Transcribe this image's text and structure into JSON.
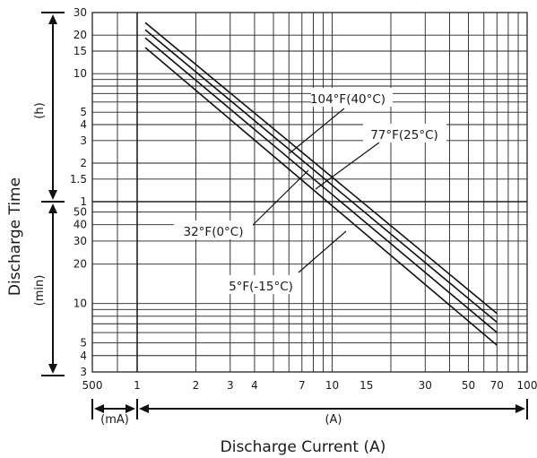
{
  "chart_data": {
    "type": "line",
    "title": "",
    "xlabel": "Discharge Current (A)",
    "ylabel": "Discharge Time",
    "x_scale": "log",
    "y_scale": "log",
    "grid": true,
    "x_ticks": [
      "500",
      "1",
      "2",
      "3",
      "4",
      "7",
      "10",
      "15",
      "30",
      "50",
      "70",
      "100"
    ],
    "x_unit_segments": [
      {
        "label": "(mA)",
        "range": [
          "500",
          "1"
        ]
      },
      {
        "label": "(A)",
        "range": [
          "1",
          "100"
        ]
      }
    ],
    "y_ticks_hours": [
      "30",
      "20",
      "15",
      "10",
      "5",
      "4",
      "3",
      "2",
      "1.5",
      "1"
    ],
    "y_ticks_minutes": [
      "50",
      "40",
      "30",
      "20",
      "10",
      "5",
      "4",
      "3"
    ],
    "y_unit_segments": [
      {
        "label": "(h)",
        "range": [
          "1",
          "30"
        ]
      },
      {
        "label": "(min)",
        "range": [
          "3",
          "1"
        ]
      }
    ],
    "series": [
      {
        "name": "104°F(40°C)",
        "x_unit": "A",
        "y_unit": "h",
        "points": [
          [
            1.1,
            25
          ],
          [
            70,
            0.14
          ]
        ]
      },
      {
        "name": "77°F(25°C)",
        "x_unit": "A",
        "y_unit": "h",
        "points": [
          [
            1.1,
            22
          ],
          [
            70,
            0.12
          ]
        ]
      },
      {
        "name": "32°F(0°C)",
        "x_unit": "A",
        "y_unit": "h",
        "points": [
          [
            1.1,
            19
          ],
          [
            70,
            0.1
          ]
        ]
      },
      {
        "name": "5°F(-15°C)",
        "x_unit": "A",
        "y_unit": "h",
        "points": [
          [
            1.1,
            16
          ],
          [
            70,
            0.08
          ]
        ]
      }
    ],
    "annotations": [
      {
        "text": "104°F(40°C)",
        "series": "104°F(40°C)"
      },
      {
        "text": "77°F(25°C)",
        "series": "77°F(25°C)"
      },
      {
        "text": "32°F(0°C)",
        "series": "32°F(0°C)"
      },
      {
        "text": "5°F(-15°C)",
        "series": "5°F(-15°C)"
      }
    ]
  }
}
